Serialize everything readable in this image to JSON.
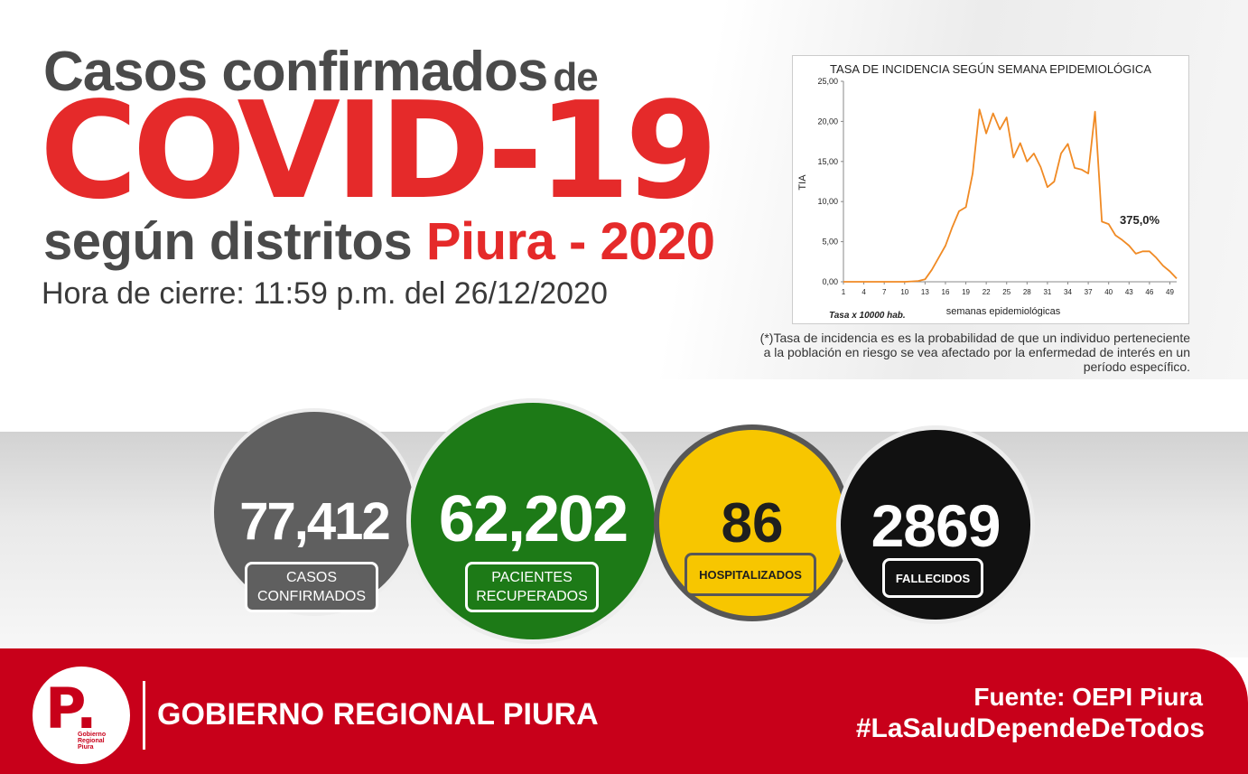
{
  "header": {
    "line1": "Casos confirmados",
    "line1_suffix": "de",
    "main_title": "COVID-19",
    "line3_prefix": "según distritos",
    "line3_highlight": "Piura - 2020",
    "closing_time": "Hora de cierre: 11:59 p.m. del 26/12/2020"
  },
  "chart_data": {
    "type": "line",
    "title": "TASA DE INCIDENCIA SEGÚN SEMANA EPIDEMIOLÓGICA",
    "xlabel": "semanas epidemiológicas",
    "ylabel": "TIA",
    "note": "Tasa x 10000 hab.",
    "annotation": "375,0%",
    "ylim": [
      0,
      25
    ],
    "xlim": [
      1,
      50
    ],
    "yticks": [
      "0,00",
      "5,00",
      "10,00",
      "15,00",
      "20,00",
      "25,00"
    ],
    "xticks": [
      "1",
      "4",
      "7",
      "10",
      "13",
      "16",
      "19",
      "22",
      "25",
      "28",
      "31",
      "34",
      "37",
      "40",
      "43",
      "46",
      "49"
    ],
    "series": [
      {
        "x": [
          1,
          2,
          3,
          4,
          5,
          6,
          7,
          8,
          9,
          10,
          11,
          12,
          13,
          14,
          15,
          16,
          17,
          18,
          19,
          20,
          21,
          22,
          23,
          24,
          25,
          26,
          27,
          28,
          29,
          30,
          31,
          32,
          33,
          34,
          35,
          36,
          37,
          38,
          39,
          40,
          41,
          42,
          43,
          44,
          45,
          46,
          47,
          48,
          49,
          50
        ],
        "values": [
          0,
          0,
          0,
          0,
          0,
          0,
          0,
          0,
          0,
          0,
          0.05,
          0.1,
          0.3,
          1.5,
          3.0,
          4.5,
          6.8,
          8.8,
          9.3,
          13.5,
          21.5,
          18.5,
          21.0,
          19.0,
          20.5,
          15.5,
          17.3,
          15.0,
          16.0,
          14.3,
          11.8,
          12.5,
          16.0,
          17.2,
          14.2,
          14.0,
          13.5,
          21.2,
          7.5,
          7.2,
          5.8,
          5.2,
          4.5,
          3.5,
          3.8,
          3.8,
          3.0,
          2.0,
          1.3,
          0.4
        ]
      }
    ]
  },
  "footnote": "(*)Tasa de incidencia es es la probabilidad de que un individuo perteneciente a la población en riesgo se vea afectado por la enfermedad de interés en un período específico.",
  "stats": {
    "confirmed": {
      "value": "77,412",
      "label": "CASOS CONFIRMADOS",
      "color": "#5f5f5f"
    },
    "recovered": {
      "value": "62,202",
      "label": "PACIENTES RECUPERADOS",
      "color": "#1d7a17"
    },
    "hospitalized": {
      "value": "86",
      "label": "HOSPITALIZADOS",
      "color": "#f7c600"
    },
    "deceased": {
      "value": "2869",
      "label": "FALLECIDOS",
      "color": "#111111"
    }
  },
  "footer": {
    "logo_letter": "P.",
    "logo_text": "Gobierno Regional Piura",
    "org_name": "GOBIERNO REGIONAL PIURA",
    "source": "Fuente: OEPI Piura",
    "hashtag": "#LaSaludDependeDeTodos",
    "color": "#c8001a"
  }
}
